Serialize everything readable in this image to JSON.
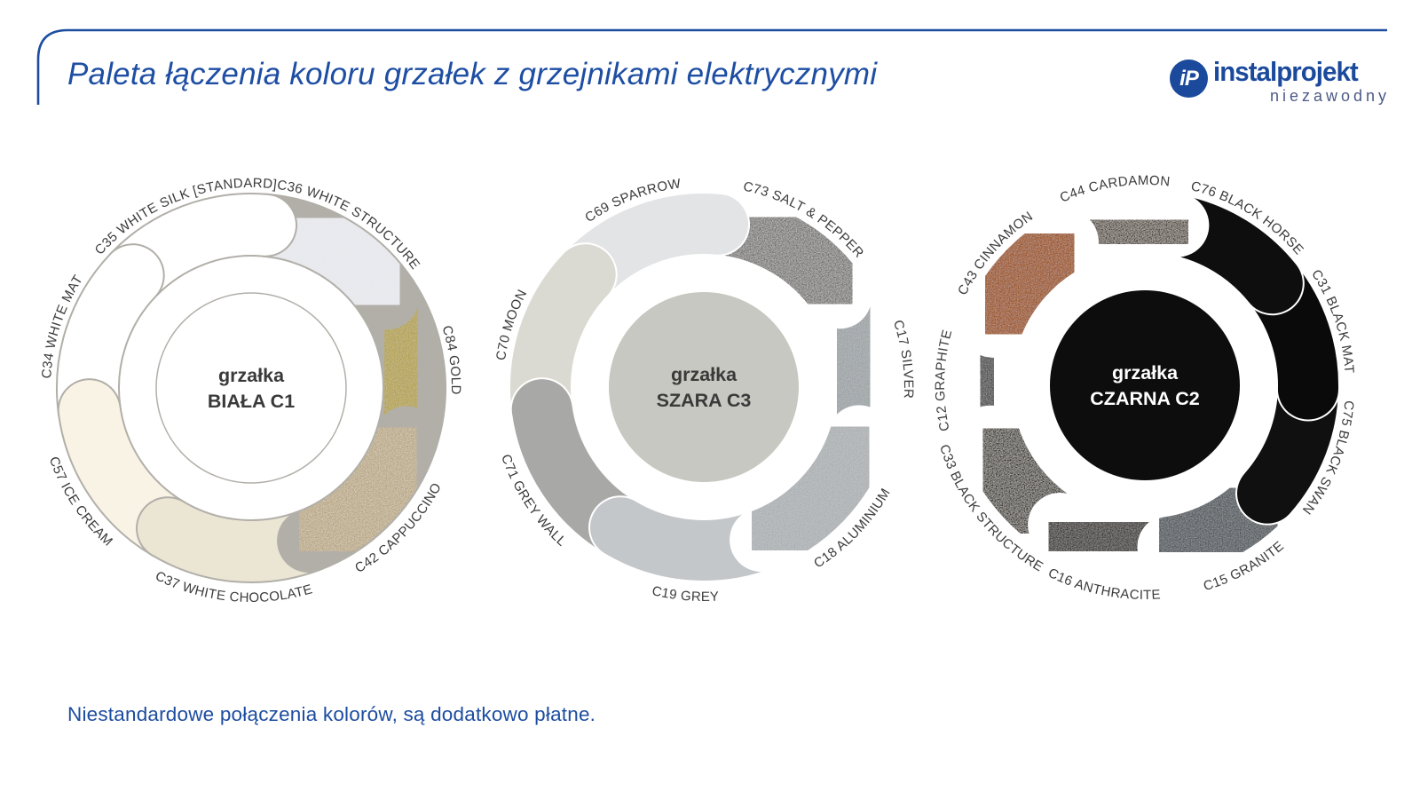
{
  "page": {
    "background": "#ffffff",
    "accent_blue": "#1d4da0"
  },
  "header": {
    "title": "Paleta łączenia koloru grzałek z grzejnikami elektrycznymi",
    "logo": {
      "monogram": "iP",
      "wordmark": "instalprojekt",
      "tagline": "niezawodny",
      "brand_color": "#1b4a9c",
      "tagline_color": "#4d5a85"
    }
  },
  "footer": {
    "note": "Niestandardowe połączenia kolorów, są dodatkowo płatne."
  },
  "rings": [
    {
      "id": "biala-c1",
      "center": {
        "lines": [
          "grzałka",
          "BIAŁA C1"
        ],
        "fill": "#ffffff",
        "stroke": "#b2afa9",
        "text_color": "#3a3a3a"
      },
      "outline": "#b2afa9",
      "start_angle": 85,
      "step": 51.42857,
      "draw_order": [
        1,
        0,
        6,
        5,
        4,
        3,
        2
      ],
      "segments": [
        {
          "code": "C36",
          "label": "C36 WHITE STRUCTURE",
          "color": "#e7e8ed",
          "texture": "soft",
          "label_path": "out"
        },
        {
          "code": "C84",
          "label": "C84 GOLD",
          "color": "#b2a04a",
          "texture": "soft",
          "label_path": "out"
        },
        {
          "code": "C42",
          "label": "C42 CAPPUCCINO",
          "color": "#b4a17c",
          "texture": "strong",
          "label_path": "in"
        },
        {
          "code": "C37",
          "label": "C37 WHITE CHOCOLATE",
          "color": "#ebe5d4",
          "texture": "",
          "label_path": "in"
        },
        {
          "code": "C57",
          "label": "C57 ICE CREAM",
          "color": "#f9f3e5",
          "texture": "",
          "label_path": "in"
        },
        {
          "code": "C34",
          "label": "C34 WHITE MAT",
          "color": "#ffffff",
          "texture": "",
          "label_path": "out"
        },
        {
          "code": "C35",
          "label": "C35 WHITE SILK [STANDARD]",
          "color": "#ffffff",
          "texture": "",
          "label_path": "out"
        }
      ]
    },
    {
      "id": "szara-c3",
      "center": {
        "lines": [
          "grzałka",
          "SZARA C3"
        ],
        "fill": "#c8c8c2",
        "stroke": "",
        "text_color": "#3a3a3a"
      },
      "outline": "#ffffff",
      "start_angle": 85,
      "step": 51.42857,
      "draw_order": [
        1,
        0,
        6,
        5,
        4,
        3,
        2
      ],
      "segments": [
        {
          "code": "C73",
          "label": "C73 SALT & PEPPER",
          "color": "#6b6c6e",
          "texture": "strong",
          "label_path": "out"
        },
        {
          "code": "C17",
          "label": "C17 SILVER",
          "color": "#9aa0a4",
          "texture": "soft",
          "label_path": "out"
        },
        {
          "code": "C18",
          "label": "C18 ALUMINIUM",
          "color": "#a9aeb1",
          "texture": "soft",
          "label_path": "in"
        },
        {
          "code": "C19",
          "label": "C19 GREY",
          "color": "#c3c7ca",
          "texture": "",
          "label_path": "in"
        },
        {
          "code": "C71",
          "label": "C71 GREY WALL",
          "color": "#a8a8a6",
          "texture": "",
          "label_path": "in"
        },
        {
          "code": "C70",
          "label": "C70 MOON",
          "color": "#dbdad2",
          "texture": "",
          "label_path": "out"
        },
        {
          "code": "C69",
          "label": "C69 SPARROW",
          "color": "#e3e4e6",
          "texture": "",
          "label_path": "out"
        }
      ]
    },
    {
      "id": "czarna-c2",
      "center": {
        "lines": [
          "grzałka",
          "CZARNA C2"
        ],
        "fill": "#0d0d0d",
        "stroke": "",
        "text_color": "#ffffff"
      },
      "outline": "#ffffff",
      "start_angle": 78.6,
      "step": 40,
      "draw_order": [
        6,
        5,
        4,
        3,
        2,
        1,
        0,
        8,
        7
      ],
      "segments": [
        {
          "code": "C76",
          "label": "C76 BLACK HORSE",
          "color": "#0e0e0e",
          "texture": "",
          "label_path": "out"
        },
        {
          "code": "C31",
          "label": "C31 BLACK MAT",
          "color": "#0a0a0a",
          "texture": "",
          "label_path": "out"
        },
        {
          "code": "C75",
          "label": "C75 BLACK SWAN",
          "color": "#101010",
          "texture": "",
          "label_path": "out"
        },
        {
          "code": "C15",
          "label": "C15 GRANITE",
          "color": "#4d545a",
          "texture": "soft",
          "label_path": "in"
        },
        {
          "code": "C16",
          "label": "C16 ANTHRACITE",
          "color": "#3a3533",
          "texture": "soft",
          "label_path": "in"
        },
        {
          "code": "C33",
          "label": "C33 BLACK STRUCTURE",
          "color": "#2b2826",
          "texture": "strong",
          "label_path": "in"
        },
        {
          "code": "C12",
          "label": "C12 GRAPHITE",
          "color": "#4a4a4c",
          "texture": "soft",
          "label_path": "out"
        },
        {
          "code": "C43",
          "label": "C43 CINNAMON",
          "color": "#9b5118",
          "texture": "soft",
          "label_path": "out"
        },
        {
          "code": "C44",
          "label": "C44 CARDAMON",
          "color": "#463c34",
          "texture": "strong",
          "label_path": "out"
        }
      ]
    }
  ]
}
